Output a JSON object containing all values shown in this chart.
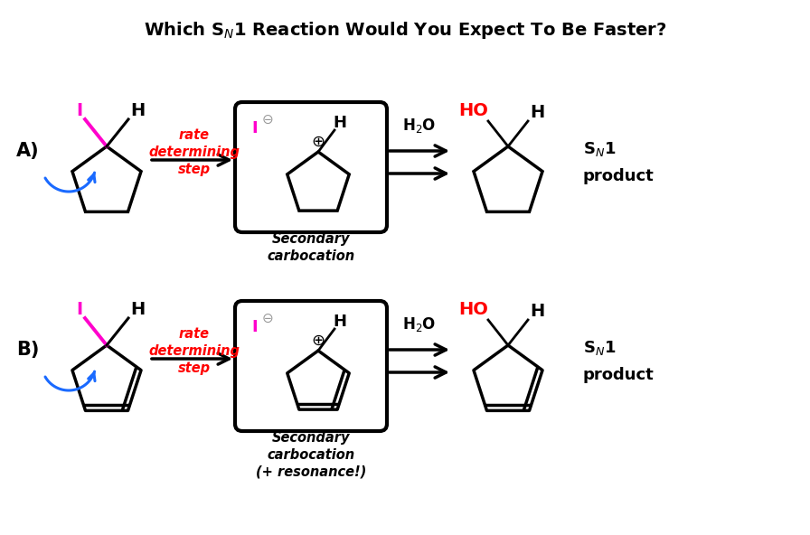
{
  "title": "Which S$_N$1 Reaction Would You Expect To Be Faster?",
  "background_color": "#ffffff",
  "label_A": "A)",
  "label_B": "B)",
  "red_text": "rate\ndetermining\nstep",
  "box_label_A": "Secondary\ncarbocation",
  "box_label_B": "Secondary\ncarbocation\n(+ resonance!)",
  "red_color": "#ff0000",
  "magenta_color": "#ff00cc",
  "blue_color": "#1a6aff",
  "black_color": "#000000",
  "gray_color": "#999999"
}
